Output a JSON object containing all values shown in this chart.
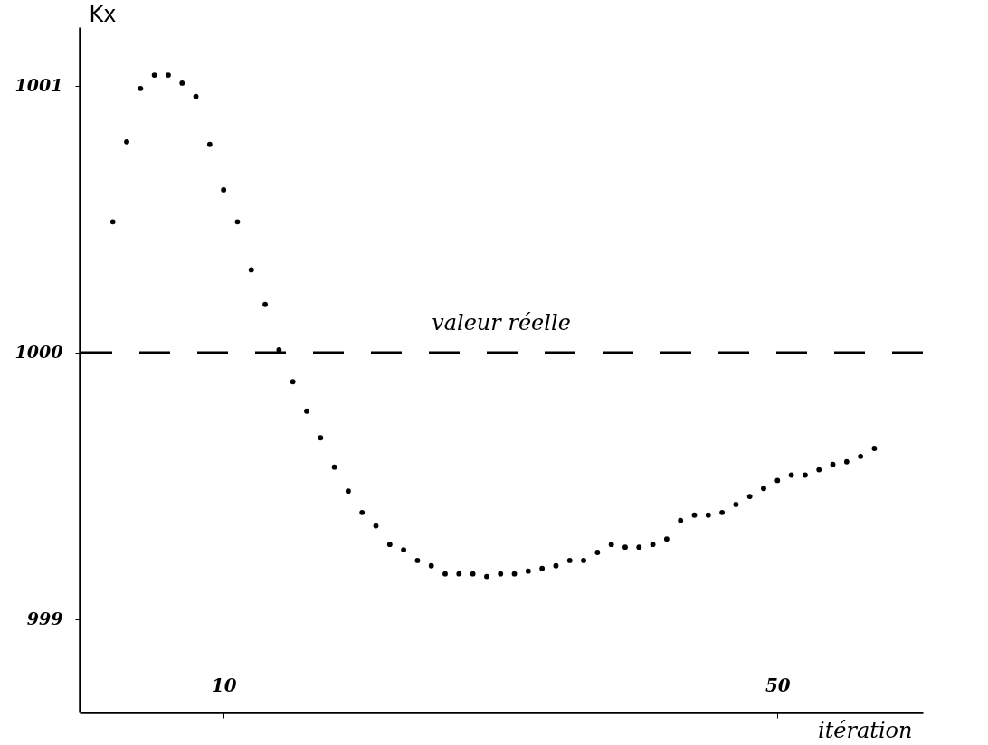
{
  "chart_data": {
    "type": "scatter",
    "xlabel": "itération",
    "ylabel": "Kx",
    "x": [
      2,
      3,
      4,
      5,
      6,
      7,
      8,
      9,
      10,
      11,
      12,
      13,
      14,
      15,
      16,
      17,
      18,
      19,
      20,
      21,
      22,
      23,
      24,
      25,
      26,
      27,
      28,
      29,
      30,
      31,
      32,
      33,
      34,
      35,
      36,
      37,
      38,
      39,
      40,
      41,
      42,
      43,
      44,
      45,
      46,
      47,
      48,
      49,
      50,
      51,
      52,
      53,
      54,
      55,
      56,
      57
    ],
    "series": [
      {
        "color": "#000000",
        "values": [
          1000.49,
          1000.79,
          1000.99,
          1001.04,
          1001.04,
          1001.01,
          1000.96,
          1000.78,
          1000.61,
          1000.49,
          1000.31,
          1000.18,
          1000.01,
          999.89,
          999.78,
          999.68,
          999.57,
          999.48,
          999.4,
          999.35,
          999.28,
          999.26,
          999.22,
          999.2,
          999.17,
          999.17,
          999.17,
          999.16,
          999.17,
          999.17,
          999.18,
          999.19,
          999.2,
          999.22,
          999.22,
          999.25,
          999.28,
          999.27,
          999.27,
          999.28,
          999.3,
          999.37,
          999.39,
          999.39,
          999.4,
          999.43,
          999.46,
          999.49,
          999.52,
          999.54,
          999.54,
          999.56,
          999.58,
          999.59,
          999.61,
          999.64
        ]
      }
    ],
    "xlim": [
      -0.4,
      60.5
    ],
    "ylim": [
      998.65,
      1001.22
    ],
    "xticks": [
      10,
      50
    ],
    "yticks": [
      999,
      1000,
      1001
    ],
    "ref_lines": [
      {
        "axis": "y",
        "value": 1000,
        "label": "valeur réelle",
        "line_style": "dashed",
        "color": "#000000"
      }
    ],
    "marker": "circle",
    "grid": false
  }
}
